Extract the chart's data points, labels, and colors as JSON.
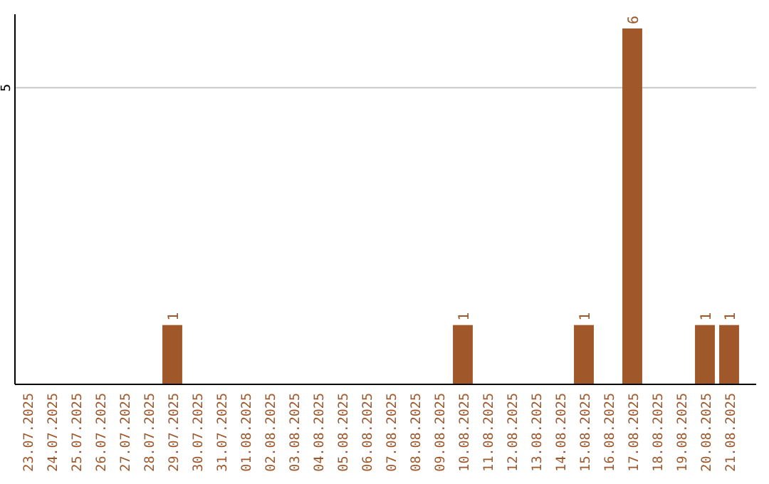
{
  "chart_data": {
    "type": "bar",
    "categories": [
      "23.07.2025",
      "24.07.2025",
      "25.07.2025",
      "26.07.2025",
      "27.07.2025",
      "28.07.2025",
      "29.07.2025",
      "30.07.2025",
      "31.07.2025",
      "01.08.2025",
      "02.08.2025",
      "03.08.2025",
      "04.08.2025",
      "05.08.2025",
      "06.08.2025",
      "07.08.2025",
      "08.08.2025",
      "09.08.2025",
      "10.08.2025",
      "11.08.2025",
      "12.08.2025",
      "13.08.2025",
      "14.08.2025",
      "15.08.2025",
      "16.08.2025",
      "17.08.2025",
      "18.08.2025",
      "19.08.2025",
      "20.08.2025",
      "21.08.2025"
    ],
    "values": [
      0,
      0,
      0,
      0,
      0,
      0,
      1,
      0,
      0,
      0,
      0,
      0,
      0,
      0,
      0,
      0,
      0,
      0,
      1,
      0,
      0,
      0,
      0,
      1,
      0,
      6,
      0,
      0,
      1,
      1
    ],
    "value_labels": [
      null,
      null,
      null,
      null,
      null,
      null,
      "1",
      null,
      null,
      null,
      null,
      null,
      null,
      null,
      null,
      null,
      null,
      null,
      "1",
      null,
      null,
      null,
      null,
      "1",
      null,
      "6",
      null,
      null,
      "1",
      "1"
    ],
    "color": "#a0572a",
    "ylim": [
      0,
      6.24
    ],
    "yticks": [
      5
    ],
    "grid": "y"
  }
}
